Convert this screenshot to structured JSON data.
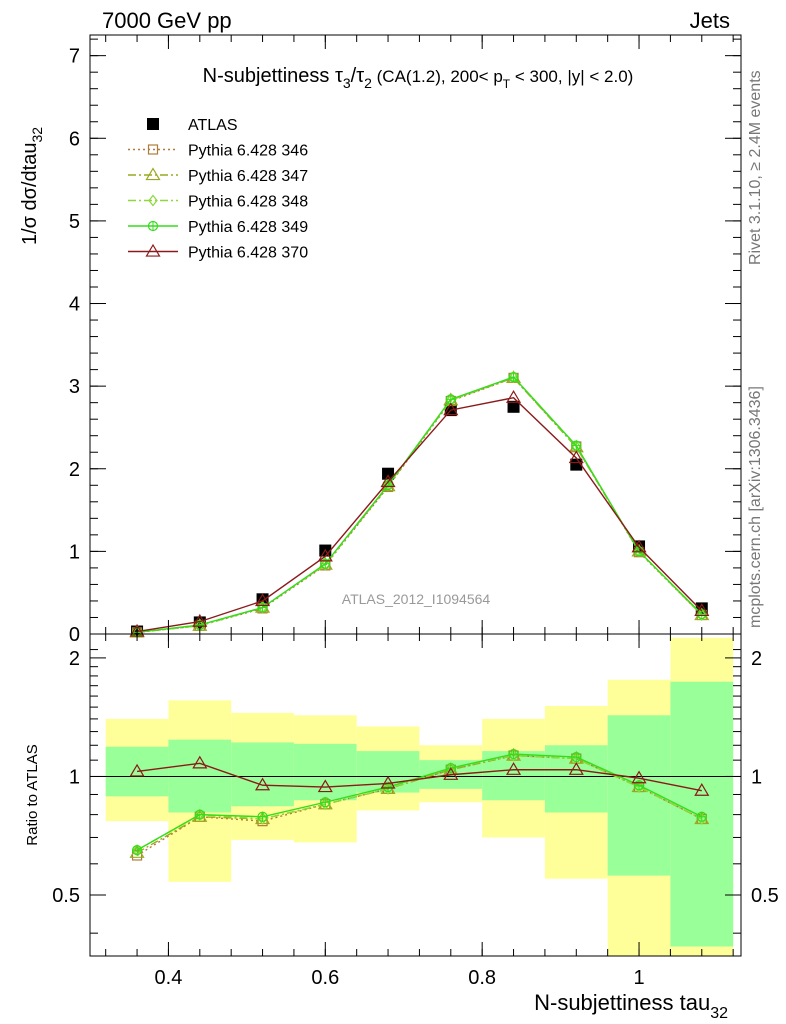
{
  "header": {
    "left": "7000 GeV pp",
    "right": "Jets"
  },
  "side_labels": {
    "rivet": "Rivet 3.1.10, ≥ 2.4M events",
    "mcplots": "mcplots.cern.ch [arXiv:1306.3436]"
  },
  "watermark": "ATLAS_2012_I1094564",
  "chart_data": [
    {
      "type": "scatter",
      "title": "N-subjettiness τ₃/τ₂ (CA(1.2), 200< p_T < 300, |y| < 2.0)",
      "ylabel": "1/σ dσ/dtau_32",
      "xlabel": "",
      "xlim": [
        0.3,
        1.13
      ],
      "ylim": [
        0,
        7.25
      ],
      "yticks": [
        0,
        1,
        2,
        3,
        4,
        5,
        6,
        7
      ],
      "x": [
        0.36,
        0.44,
        0.52,
        0.6,
        0.68,
        0.76,
        0.84,
        0.92,
        1.0,
        1.08
      ],
      "legend_position": "top-left",
      "series": [
        {
          "name": "ATLAS",
          "values": [
            0.03,
            0.14,
            0.42,
            1.01,
            1.94,
            2.71,
            2.75,
            2.05,
            1.06,
            0.31
          ],
          "color": "#000000",
          "marker": "filled-square"
        },
        {
          "name": "Pythia 6.428 346",
          "values": [
            0.02,
            0.1,
            0.31,
            0.83,
            1.78,
            2.82,
            3.1,
            2.27,
            0.99,
            0.23
          ],
          "color": "#b07a3c",
          "marker": "open-square",
          "dash": "dotted"
        },
        {
          "name": "Pythia 6.428 347",
          "values": [
            0.02,
            0.1,
            0.32,
            0.84,
            1.79,
            2.83,
            3.1,
            2.26,
            1.0,
            0.23
          ],
          "color": "#9aaa1e",
          "marker": "open-triangle",
          "dash": "dash-dot"
        },
        {
          "name": "Pythia 6.428 348",
          "values": [
            0.02,
            0.1,
            0.32,
            0.84,
            1.8,
            2.83,
            3.11,
            2.27,
            1.0,
            0.23
          ],
          "color": "#8ed83a",
          "marker": "open-diamond",
          "dash": "dash-dot"
        },
        {
          "name": "Pythia 6.428 349",
          "values": [
            0.02,
            0.11,
            0.32,
            0.85,
            1.8,
            2.84,
            3.11,
            2.28,
            1.0,
            0.24
          ],
          "color": "#33dd1a",
          "marker": "open-circle-cross",
          "dash": "solid"
        },
        {
          "name": "Pythia 6.428 370",
          "values": [
            0.03,
            0.15,
            0.4,
            0.94,
            1.84,
            2.71,
            2.86,
            2.13,
            1.05,
            0.28
          ],
          "color": "#8b1a1a",
          "marker": "open-triangle",
          "dash": "solid"
        }
      ]
    },
    {
      "type": "scatter",
      "title": "",
      "ylabel": "Ratio to ATLAS",
      "xlabel": "N-subjettiness tau_32",
      "xlim": [
        0.3,
        1.13
      ],
      "ylim": [
        0.35,
        2.3
      ],
      "yticks": [
        0.5,
        1,
        2
      ],
      "xticks": [
        0.4,
        0.6,
        0.8,
        1
      ],
      "x": [
        0.36,
        0.44,
        0.52,
        0.6,
        0.68,
        0.76,
        0.84,
        0.92,
        1.0,
        1.08
      ],
      "bin_edges": [
        0.32,
        0.4,
        0.48,
        0.56,
        0.64,
        0.72,
        0.8,
        0.88,
        0.96,
        1.04,
        1.12
      ],
      "bands": {
        "green_lower": [
          0.89,
          0.81,
          0.84,
          0.87,
          0.91,
          0.93,
          0.87,
          0.81,
          0.56,
          0.37
        ],
        "green_upper": [
          1.19,
          1.24,
          1.22,
          1.21,
          1.16,
          1.1,
          1.16,
          1.2,
          1.43,
          1.74
        ],
        "yellow_lower": [
          0.77,
          0.54,
          0.69,
          0.68,
          0.82,
          0.86,
          0.7,
          0.55,
          0.3,
          0.3
        ],
        "yellow_upper": [
          1.4,
          1.56,
          1.45,
          1.43,
          1.34,
          1.2,
          1.4,
          1.51,
          1.76,
          2.25
        ],
        "green_color": "#99ff99",
        "yellow_color": "#ffff99"
      },
      "reference_line": 1,
      "series": [
        {
          "name": "Pythia 6.428 346",
          "values": [
            0.63,
            0.79,
            0.77,
            0.85,
            0.93,
            1.04,
            1.13,
            1.11,
            0.94,
            0.78
          ],
          "color": "#b07a3c",
          "marker": "open-square",
          "dash": "dotted"
        },
        {
          "name": "Pythia 6.428 347",
          "values": [
            0.64,
            0.79,
            0.78,
            0.85,
            0.93,
            1.04,
            1.13,
            1.11,
            0.94,
            0.78
          ],
          "color": "#9aaa1e",
          "marker": "open-triangle",
          "dash": "dash-dot"
        },
        {
          "name": "Pythia 6.428 348",
          "values": [
            0.65,
            0.8,
            0.78,
            0.85,
            0.93,
            1.05,
            1.13,
            1.11,
            0.94,
            0.78
          ],
          "color": "#8ed83a",
          "marker": "open-diamond",
          "dash": "dash-dot"
        },
        {
          "name": "Pythia 6.428 349",
          "values": [
            0.65,
            0.8,
            0.79,
            0.86,
            0.94,
            1.05,
            1.14,
            1.12,
            0.95,
            0.79
          ],
          "color": "#33dd1a",
          "marker": "open-circle-cross",
          "dash": "solid"
        },
        {
          "name": "Pythia 6.428 370",
          "values": [
            1.03,
            1.08,
            0.95,
            0.94,
            0.96,
            1.01,
            1.04,
            1.04,
            0.99,
            0.92
          ],
          "color": "#8b1a1a",
          "marker": "open-triangle",
          "dash": "solid"
        }
      ]
    }
  ]
}
